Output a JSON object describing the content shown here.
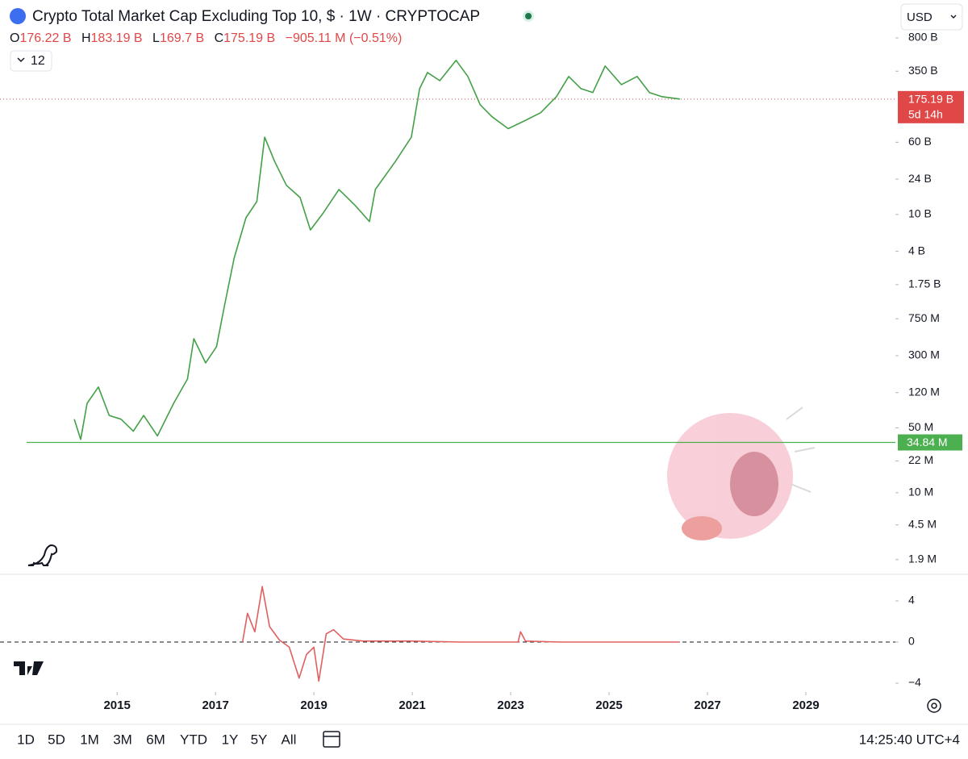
{
  "header": {
    "title": "Crypto Total Market Cap Excluding Top 10, $ · 1W · CRYPTOCAP",
    "ohlc": [
      {
        "key": "O",
        "value": "176.22 B"
      },
      {
        "key": "H",
        "value": "183.19 B"
      },
      {
        "key": "L",
        "value": "169.7 B"
      },
      {
        "key": "C",
        "value": "175.19 B"
      }
    ],
    "change": "−905.11 M (−0.51%)",
    "indicator_count": "12",
    "currency": "USD"
  },
  "chart_data": [
    {
      "type": "line",
      "log_scale": true,
      "grid": false,
      "color": "#43a047",
      "x": [
        2014.13,
        2014.26,
        2014.39,
        2014.62,
        2014.84,
        2015.08,
        2015.33,
        2015.54,
        2015.82,
        2016.15,
        2016.43,
        2016.56,
        2016.8,
        2017.02,
        2017.18,
        2017.38,
        2017.62,
        2017.84,
        2018.0,
        2018.2,
        2018.44,
        2018.72,
        2018.93,
        2019.18,
        2019.51,
        2019.84,
        2020.13,
        2020.25,
        2020.66,
        2020.98,
        2021.15,
        2021.31,
        2021.56,
        2021.89,
        2022.13,
        2022.38,
        2022.62,
        2022.95,
        2023.28,
        2023.61,
        2023.93,
        2024.18,
        2024.43,
        2024.67,
        2024.92,
        2025.25,
        2025.57,
        2025.82,
        2026.07,
        2026.44
      ],
      "values": [
        62000000,
        37500000,
        92000000,
        138000000,
        68000000,
        62000000,
        46000000,
        68000000,
        41000000,
        92000000,
        168000000,
        458000000,
        251000000,
        375000000,
        1020000000,
        3390000000,
        9200000000,
        13800000000,
        68000000000,
        37500000000,
        20600000000,
        15200000000,
        6800000000,
        10200000000,
        18600000000,
        12500000000,
        8400000000,
        18600000000,
        37500000000,
        68000000000,
        227000000000,
        339000000000,
        277000000000,
        458000000000,
        307000000000,
        152000000000,
        113000000000,
        84000000000,
        102000000000,
        125000000000,
        186000000000,
        307000000000,
        227000000000,
        206000000000,
        398000000000,
        251000000000,
        307000000000,
        206000000000,
        186000000000,
        175190000000
      ],
      "xlim": [
        2012.62,
        2030.82
      ],
      "ylim": [
        1320000,
        920000000000
      ],
      "yticks": [
        {
          "value": 800000000000,
          "label": "800 B"
        },
        {
          "value": 350000000000,
          "label": "350 B"
        },
        {
          "value": 60000000000,
          "label": "60 B"
        },
        {
          "value": 24000000000,
          "label": "24 B"
        },
        {
          "value": 10000000000,
          "label": "10 B"
        },
        {
          "value": 4000000000,
          "label": "4 B"
        },
        {
          "value": 1750000000,
          "label": "1.75 B"
        },
        {
          "value": 750000000,
          "label": "750 M"
        },
        {
          "value": 300000000,
          "label": "300 M"
        },
        {
          "value": 120000000,
          "label": "120 M"
        },
        {
          "value": 50000000,
          "label": "50 M"
        },
        {
          "value": 22000000,
          "label": "22 M"
        },
        {
          "value": 10000000,
          "label": "10 M"
        },
        {
          "value": 4500000,
          "label": "4.5 M"
        },
        {
          "value": 1900000,
          "label": "1.9 M"
        }
      ],
      "hlines": [
        {
          "value": 34840000,
          "label": "34.84 M",
          "color": "#4caf50"
        }
      ],
      "last_price": {
        "value": 175190000000,
        "label": "175.19 B",
        "countdown": "5d 14h",
        "color": "#e04848"
      }
    },
    {
      "type": "line",
      "color": "#e06060",
      "zero_line": true,
      "x": [
        2017.55,
        2017.65,
        2017.8,
        2017.95,
        2018.1,
        2018.3,
        2018.5,
        2018.7,
        2018.85,
        2019.0,
        2019.1,
        2019.25,
        2019.4,
        2019.6,
        2020.0,
        2021.0,
        2022.0,
        2023.15,
        2023.2,
        2023.3,
        2024.0,
        2025.0,
        2026.44
      ],
      "values": [
        0,
        2.8,
        1,
        5.4,
        1.5,
        0.2,
        -0.5,
        -3.5,
        -1.2,
        -0.5,
        -3.8,
        0.8,
        1.2,
        0.3,
        0.1,
        0.1,
        0,
        0,
        1,
        0.1,
        0,
        0,
        0
      ],
      "xlim": [
        2012.62,
        2030.82
      ],
      "ylim": [
        -4.86,
        6.59
      ],
      "yticks": [
        4,
        0,
        {
          "value": -4,
          "label": "−4"
        }
      ],
      "xticks": [
        2015,
        2017,
        2019,
        2021,
        2023,
        2025,
        2027,
        2029
      ]
    }
  ],
  "toolbar": {
    "ranges": [
      "1D",
      "5D",
      "1M",
      "3M",
      "6M",
      "YTD",
      "1Y",
      "5Y",
      "All"
    ],
    "clock": "14:25:40 UTC+4"
  }
}
